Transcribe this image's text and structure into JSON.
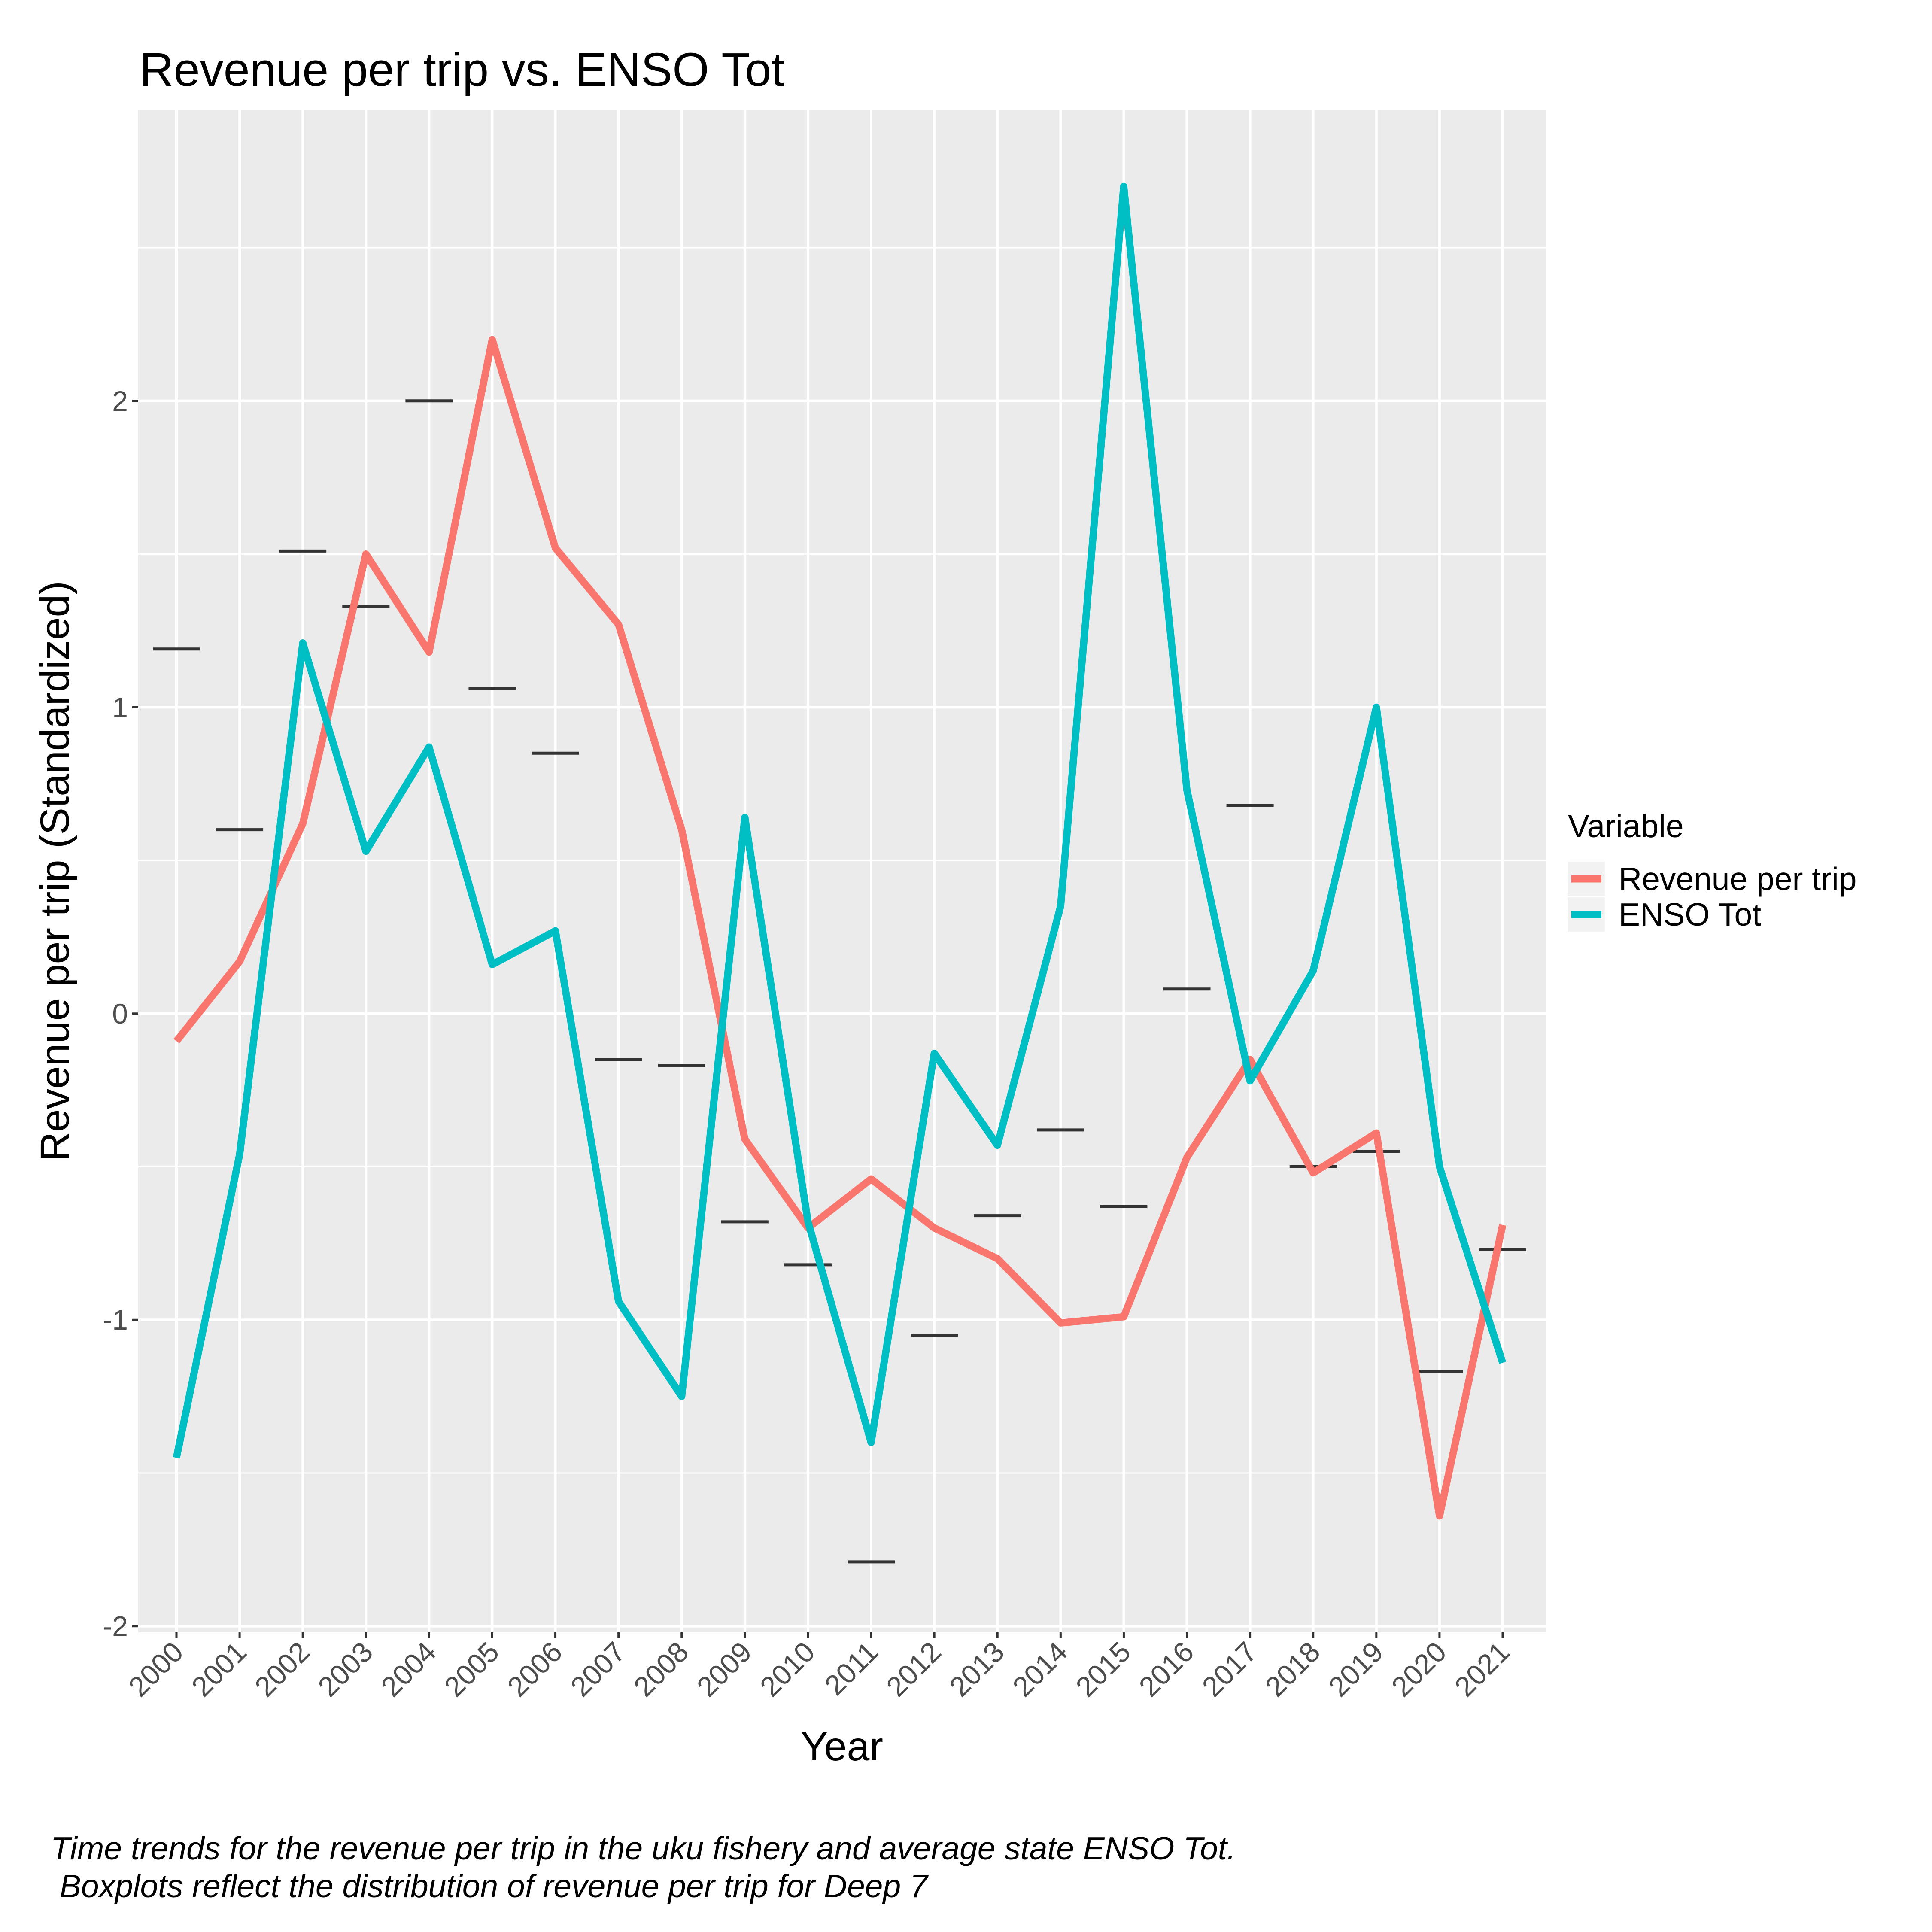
{
  "chart_data": {
    "type": "line",
    "title": "Revenue per trip vs. ENSO Tot",
    "xlabel": "Year",
    "ylabel": "Revenue per trip (Standardized)",
    "categories": [
      "2000",
      "2001",
      "2002",
      "2003",
      "2004",
      "2005",
      "2006",
      "2007",
      "2008",
      "2009",
      "2010",
      "2011",
      "2012",
      "2013",
      "2014",
      "2015",
      "2016",
      "2017",
      "2018",
      "2019",
      "2020",
      "2021"
    ],
    "ylim": [
      -2.02,
      2.95
    ],
    "yticks": [
      -2,
      -1,
      0,
      1,
      2
    ],
    "ytick_labels": [
      "-2",
      "-1",
      "0",
      "1",
      "2"
    ],
    "grid": true,
    "legend": {
      "title": "Variable",
      "position": "right"
    },
    "series": [
      {
        "name": "Revenue per trip",
        "color": "#F8766D",
        "values": [
          -0.09,
          0.17,
          0.62,
          1.5,
          1.18,
          2.2,
          1.52,
          1.27,
          0.6,
          -0.41,
          -0.7,
          -0.54,
          -0.7,
          -0.8,
          -1.01,
          -0.99,
          -0.47,
          -0.15,
          -0.52,
          -0.39,
          -1.64,
          -0.69
        ]
      },
      {
        "name": "ENSO Tot",
        "color": "#00BFC4",
        "values": [
          -1.45,
          -0.46,
          1.21,
          0.53,
          0.87,
          0.16,
          0.27,
          -0.94,
          -1.25,
          0.64,
          -0.68,
          -1.4,
          -0.13,
          -0.43,
          0.35,
          2.7,
          0.73,
          -0.22,
          0.14,
          1.0,
          -0.5,
          -1.14
        ]
      }
    ],
    "boxplot_medians": {
      "color": "#333333",
      "values": [
        1.19,
        0.6,
        1.51,
        1.33,
        2.0,
        1.06,
        0.85,
        -0.15,
        -0.17,
        -0.68,
        -0.82,
        -1.79,
        -1.05,
        -0.66,
        -0.38,
        -0.63,
        0.08,
        0.68,
        -0.5,
        -0.45,
        -1.17,
        -0.77
      ]
    }
  },
  "caption": {
    "line1": "Time trends for the revenue per trip in the uku fishery and average state ENSO Tot.",
    "line2": " Boxplots reflect the distribution of revenue per trip for Deep 7"
  }
}
